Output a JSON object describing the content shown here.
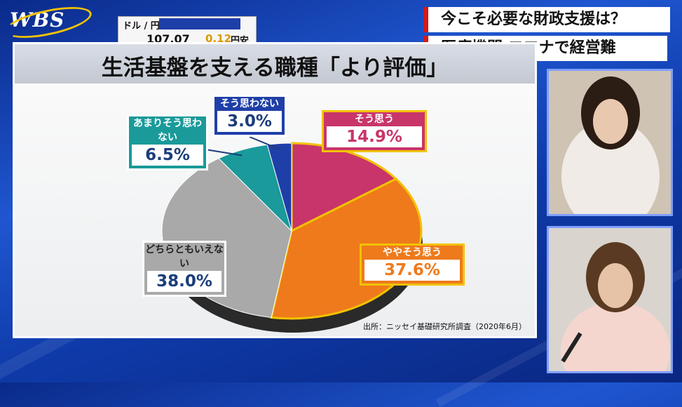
{
  "broadcast": {
    "logo": "WBS",
    "fx": {
      "label": "ドル / 円",
      "rate": "107.07",
      "change": "0.12",
      "direction": "円安"
    },
    "headline_1": "今こそ必要な財政支援は？",
    "headline_2": "医療機関 コロナで経営難"
  },
  "colors": {
    "highlight_border": "#f2c200",
    "headline_bar": "#d21a1a"
  },
  "chart_data": {
    "type": "pie",
    "title": "生活基盤を支える職種「より評価」",
    "source": "出所：ニッセイ基礎研究所調査（2020年6月）",
    "slices": [
      {
        "label": "そう思う",
        "value": 14.9,
        "display": "14.9%",
        "color": "#c8356a"
      },
      {
        "label": "ややそう思う",
        "value": 37.6,
        "display": "37.6%",
        "color": "#ee7a1c"
      },
      {
        "label": "どちらともいえない",
        "value": 38.0,
        "display": "38.0%",
        "color": "#a9a9a9"
      },
      {
        "label": "あまりそう思わない",
        "value": 6.5,
        "display": "6.5%",
        "color": "#1a9a9a"
      },
      {
        "label": "そう思わない",
        "value": 3.0,
        "display": "3.0%",
        "color": "#1f3fa8"
      }
    ]
  }
}
